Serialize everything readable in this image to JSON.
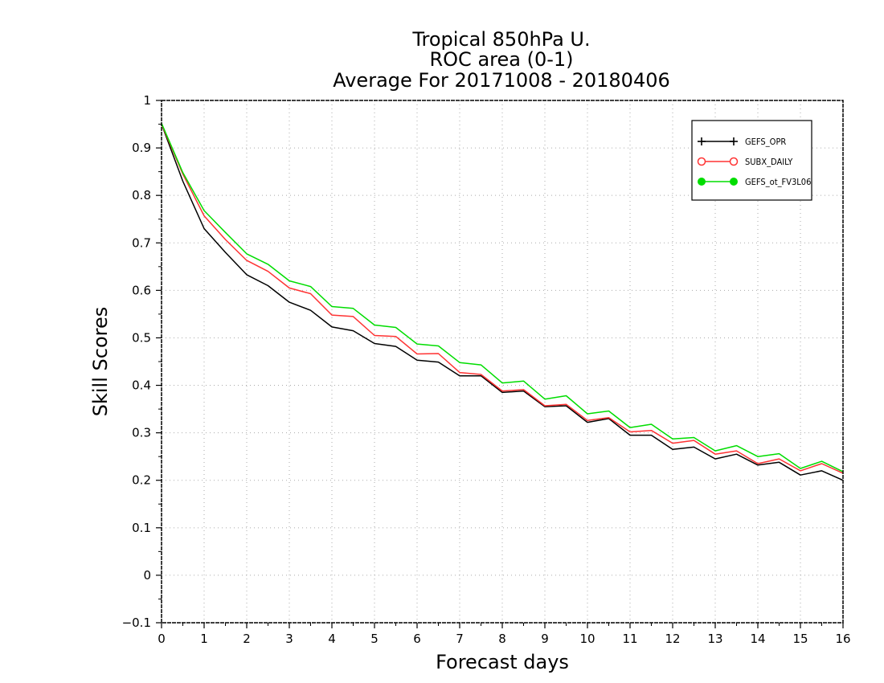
{
  "chart_data": {
    "type": "line",
    "title": [
      "Tropical 850hPa U.",
      "ROC area (0-1)",
      "Average For 20171008 - 20180406"
    ],
    "xlabel": "Forecast days",
    "ylabel": "Skill Scores",
    "xlim": [
      0,
      16
    ],
    "ylim": [
      -0.1,
      1
    ],
    "x_ticks": [
      "0",
      "1",
      "2",
      "3",
      "4",
      "5",
      "6",
      "7",
      "8",
      "9",
      "10",
      "11",
      "12",
      "13",
      "14",
      "15",
      "16"
    ],
    "y_ticks": [
      "−0.1",
      "0",
      "0.1",
      "0.2",
      "0.3",
      "0.4",
      "0.5",
      "0.6",
      "0.7",
      "0.8",
      "0.9",
      "1"
    ],
    "grid": true,
    "legend_position": "top-right",
    "x": [
      0,
      0.5,
      1,
      1.5,
      2,
      2.5,
      3,
      3.5,
      4,
      4.5,
      5,
      5.5,
      6,
      6.5,
      7,
      7.5,
      8,
      8.5,
      9,
      9.5,
      10,
      10.5,
      11,
      11.5,
      12,
      12.5,
      13,
      13.5,
      14,
      14.5,
      15,
      15.5,
      16
    ],
    "series": [
      {
        "name": "GEFS_OPR",
        "color": "#000000",
        "marker": "plus",
        "values": [
          0.95,
          0.83,
          0.73,
          0.68,
          0.633,
          0.61,
          0.575,
          0.558,
          0.523,
          0.515,
          0.488,
          0.482,
          0.453,
          0.449,
          0.42,
          0.42,
          0.385,
          0.388,
          0.355,
          0.357,
          0.322,
          0.33,
          0.295,
          0.295,
          0.265,
          0.27,
          0.245,
          0.255,
          0.232,
          0.238,
          0.211,
          0.22,
          0.2
        ]
      },
      {
        "name": "SUBX_DAILY",
        "color": "#ff3333",
        "marker": "open-circle",
        "values": [
          0.95,
          0.845,
          0.757,
          0.707,
          0.663,
          0.64,
          0.605,
          0.593,
          0.548,
          0.545,
          0.505,
          0.503,
          0.466,
          0.467,
          0.427,
          0.423,
          0.388,
          0.391,
          0.357,
          0.36,
          0.326,
          0.332,
          0.302,
          0.305,
          0.278,
          0.284,
          0.255,
          0.262,
          0.235,
          0.245,
          0.22,
          0.235,
          0.215
        ]
      },
      {
        "name": "GEFS_ot_FV3L06",
        "color": "#00dd00",
        "marker": "filled-circle",
        "values": [
          0.952,
          0.848,
          0.768,
          0.722,
          0.677,
          0.655,
          0.62,
          0.608,
          0.566,
          0.562,
          0.527,
          0.522,
          0.487,
          0.483,
          0.448,
          0.443,
          0.405,
          0.409,
          0.371,
          0.378,
          0.34,
          0.346,
          0.311,
          0.318,
          0.287,
          0.29,
          0.262,
          0.273,
          0.25,
          0.256,
          0.225,
          0.24,
          0.218
        ]
      }
    ]
  }
}
